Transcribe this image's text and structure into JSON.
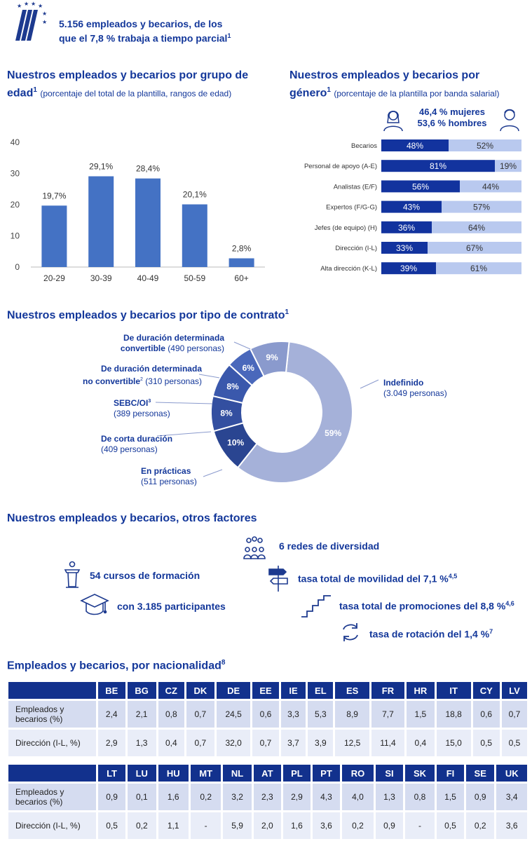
{
  "header": {
    "line1": "5.156 empleados y becarios, de los",
    "line2": "que el 7,8 % trabaja a tiempo parcial",
    "note": "1"
  },
  "age_section": {
    "title_a": "Nuestros empleados  y becarios  por grupo de",
    "title_b": "edad",
    "note": "1",
    "subtitle": "(porcentaje del total de la plantilla, rangos de edad)"
  },
  "gender_section": {
    "title_a": "Nuestros empleados  y becarios  por",
    "title_b": "género",
    "note": "1",
    "subtitle": "(porcentaje de la plantilla por banda salarial)",
    "women": "46,4 % mujeres",
    "men": "53,6 % hombres"
  },
  "contract_section": {
    "title": "Nuestros empleados  y becarios  por tipo de contrato",
    "note": "1"
  },
  "factors": {
    "title": "Nuestros empleados  y becarios,  otros factores",
    "diversity": "6 redes de diversidad",
    "courses": "54 cursos de formación",
    "mobility": "tasa total de movilidad del 7,1 %",
    "mobility_note": "4,5",
    "participants": "con 3.185 participantes",
    "promotions": "tasa total de promociones del 8,8 %",
    "promotions_note": "4,6",
    "rotation": "tasa de rotación del 1,4 %",
    "rotation_note": "7"
  },
  "nationality": {
    "title": "Empleados y becarios, por nacionalidad",
    "note": "8",
    "row_labels": [
      "Empleados y becarios (%)",
      "Dirección (I-L, %)"
    ],
    "table1": {
      "countries": [
        "BE",
        "BG",
        "CZ",
        "DK",
        "DE",
        "EE",
        "IE",
        "EL",
        "ES",
        "FR",
        "HR",
        "IT",
        "CY",
        "LV"
      ],
      "employees": [
        "2,4",
        "2,1",
        "0,8",
        "0,7",
        "24,5",
        "0,6",
        "3,3",
        "5,3",
        "8,9",
        "7,7",
        "1,5",
        "18,8",
        "0,6",
        "0,7"
      ],
      "management": [
        "2,9",
        "1,3",
        "0,4",
        "0,7",
        "32,0",
        "0,7",
        "3,7",
        "3,9",
        "12,5",
        "11,4",
        "0,4",
        "15,0",
        "0,5",
        "0,5"
      ]
    },
    "table2": {
      "countries": [
        "LT",
        "LU",
        "HU",
        "MT",
        "NL",
        "AT",
        "PL",
        "PT",
        "RO",
        "SI",
        "SK",
        "FI",
        "SE",
        "UK"
      ],
      "employees": [
        "0,9",
        "0,1",
        "1,6",
        "0,2",
        "3,2",
        "2,3",
        "2,9",
        "4,3",
        "4,0",
        "1,3",
        "0,8",
        "1,5",
        "0,9",
        "3,4"
      ],
      "management": [
        "0,5",
        "0,2",
        "1,1",
        "-",
        "5,9",
        "2,0",
        "1,6",
        "3,6",
        "0,2",
        "0,9",
        "-",
        "0,5",
        "0,2",
        "3,6"
      ]
    }
  },
  "chart_data": [
    {
      "type": "bar",
      "categories": [
        "20-29",
        "30-39",
        "40-49",
        "50-59",
        "60+"
      ],
      "values": [
        19.7,
        29.1,
        28.4,
        20.1,
        2.8
      ],
      "labels": [
        "19,7%",
        "29,1%",
        "28,4%",
        "20,1%",
        "2,8%"
      ],
      "yticks": [
        0,
        10,
        20,
        30,
        40
      ],
      "ylim": [
        0,
        40
      ],
      "color": "#4472c4"
    },
    {
      "type": "bar",
      "orientation": "horizontal-stacked",
      "categories": [
        "Becarios",
        "Personal de apoyo (A-E)",
        "Analistas (E/F)",
        "Expertos (F/G-G)",
        "Jefes (de equipo) (H)",
        "Dirección (I-L)",
        "Alta dirección (K-L)"
      ],
      "women": [
        48,
        81,
        56,
        43,
        36,
        33,
        39
      ],
      "men": [
        52,
        19,
        44,
        57,
        64,
        67,
        61
      ],
      "women_labels": [
        "48%",
        "81%",
        "56%",
        "43%",
        "36%",
        "33%",
        "39%"
      ],
      "men_labels": [
        "52%",
        "19%",
        "44%",
        "57%",
        "64%",
        "67%",
        "61%"
      ],
      "colors": {
        "women": "#12339e",
        "men": "#b9c9ef"
      }
    },
    {
      "type": "pie",
      "donut": true,
      "slices": [
        {
          "value": 59,
          "label": "59%",
          "name": "Indefinido",
          "detail": "(3.049 personas)",
          "color": "#a5b1d9"
        },
        {
          "value": 10,
          "label": "10%",
          "name": "En prácticas",
          "detail": "(511 personas)",
          "color": "#2a4591"
        },
        {
          "value": 8,
          "label": "8%",
          "name": "De corta duración",
          "detail": "(409 personas)",
          "color": "#334fa0"
        },
        {
          "value": 8,
          "label": "8%",
          "name": "SEBC/OI³",
          "detail": "(389 personas)",
          "color": "#3a58ac"
        },
        {
          "value": 6,
          "label": "6%",
          "name": "De duración determinada no convertible²",
          "detail": "(310 personas)",
          "color": "#4a68bb"
        },
        {
          "value": 9,
          "label": "9%",
          "name": "De duración determinada convertible",
          "detail": "(490 personas)",
          "color": "#8a9acd"
        }
      ]
    }
  ]
}
